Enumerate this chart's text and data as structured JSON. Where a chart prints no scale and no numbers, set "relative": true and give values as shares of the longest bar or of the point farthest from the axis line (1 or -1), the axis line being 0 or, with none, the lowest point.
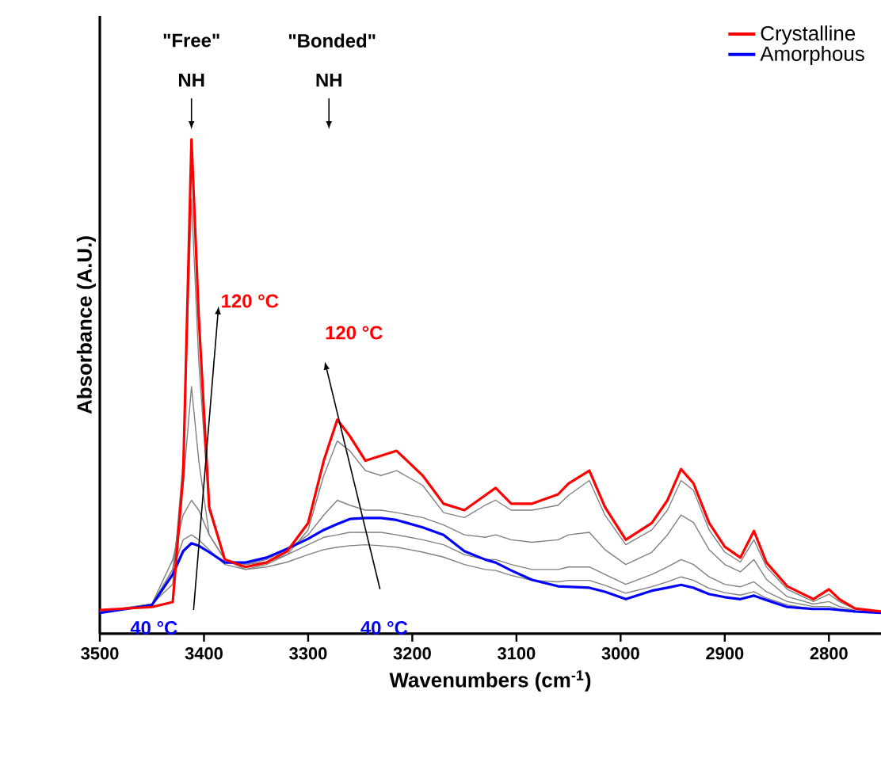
{
  "chart_data": {
    "type": "line",
    "relative": true,
    "xlabel": "Wavenumbers (cm$^{-1}$)",
    "ylabel": "Absorbance (A.U.)",
    "xlim": [
      3500,
      2750
    ],
    "xticks": [
      3500,
      3400,
      3300,
      3200,
      3100,
      3000,
      2900,
      2800
    ],
    "legend": "top right",
    "x": [
      3500,
      3450,
      3430,
      3420,
      3412,
      3405,
      3395,
      3380,
      3360,
      3340,
      3320,
      3300,
      3285,
      3272,
      3260,
      3245,
      3230,
      3215,
      3190,
      3170,
      3150,
      3130,
      3120,
      3105,
      3085,
      3060,
      3050,
      3030,
      3015,
      2995,
      2970,
      2955,
      2942,
      2930,
      2915,
      2900,
      2885,
      2872,
      2860,
      2840,
      2815,
      2800,
      2790,
      2775,
      2750
    ],
    "series": [
      {
        "color": "#808080",
        "values": [
          0.043,
          0.058,
          0.13,
          0.19,
          0.2,
          0.19,
          0.17,
          0.14,
          0.13,
          0.135,
          0.145,
          0.16,
          0.17,
          0.175,
          0.178,
          0.18,
          0.178,
          0.175,
          0.165,
          0.155,
          0.14,
          0.13,
          0.128,
          0.118,
          0.108,
          0.105,
          0.108,
          0.108,
          0.098,
          0.082,
          0.095,
          0.105,
          0.115,
          0.108,
          0.092,
          0.083,
          0.078,
          0.085,
          0.072,
          0.058,
          0.05,
          0.05,
          0.047,
          0.044,
          null
        ]
      },
      {
        "color": "#808080",
        "values": [
          0.044,
          0.06,
          0.15,
          0.24,
          0.27,
          0.25,
          0.2,
          0.15,
          0.14,
          0.145,
          0.16,
          0.18,
          0.195,
          0.2,
          0.205,
          0.205,
          0.205,
          0.2,
          0.19,
          0.18,
          0.16,
          0.15,
          0.15,
          0.14,
          0.13,
          0.13,
          0.135,
          0.135,
          0.12,
          0.1,
          0.12,
          0.135,
          0.15,
          0.14,
          0.115,
          0.1,
          0.095,
          0.105,
          0.085,
          0.065,
          0.055,
          0.055,
          0.05,
          0.046,
          null
        ]
      },
      {
        "color": "#808080",
        "values": [
          0.045,
          0.06,
          0.13,
          0.3,
          0.5,
          0.35,
          0.2,
          0.15,
          0.14,
          0.15,
          0.17,
          0.2,
          0.24,
          0.27,
          0.26,
          0.25,
          0.25,
          0.245,
          0.235,
          0.22,
          0.2,
          0.195,
          0.2,
          0.19,
          0.185,
          0.19,
          0.2,
          0.205,
          0.17,
          0.14,
          0.165,
          0.2,
          0.24,
          0.225,
          0.17,
          0.14,
          0.125,
          0.15,
          0.11,
          0.075,
          0.06,
          0.065,
          0.055,
          0.047,
          null
        ]
      },
      {
        "color": "#808080",
        "values": [
          0.045,
          0.06,
          0.1,
          0.35,
          0.88,
          0.55,
          0.25,
          0.15,
          0.13,
          0.14,
          0.16,
          0.21,
          0.32,
          0.39,
          0.37,
          0.33,
          0.32,
          0.33,
          0.3,
          0.245,
          0.235,
          0.26,
          0.27,
          0.25,
          0.25,
          0.26,
          0.28,
          0.31,
          0.24,
          0.18,
          0.21,
          0.25,
          0.31,
          0.29,
          0.21,
          0.165,
          0.145,
          0.19,
          0.135,
          0.09,
          0.065,
          0.08,
          0.065,
          0.05,
          null
        ]
      },
      {
        "name": "Amorphous",
        "color": "#0000ff",
        "values": [
          0.042,
          0.058,
          0.12,
          0.167,
          0.183,
          0.178,
          0.165,
          0.144,
          0.144,
          0.154,
          0.172,
          0.192,
          0.21,
          0.222,
          0.232,
          0.234,
          0.234,
          0.23,
          0.215,
          0.2,
          0.167,
          0.15,
          0.144,
          0.128,
          0.109,
          0.096,
          0.095,
          0.093,
          0.085,
          0.07,
          0.087,
          0.093,
          0.099,
          0.093,
          0.08,
          0.074,
          0.07,
          0.077,
          0.068,
          0.054,
          0.05,
          0.05,
          0.048,
          0.045,
          0.042
        ]
      },
      {
        "name": "Crystalline",
        "color": "#ff0000",
        "values": [
          0.048,
          0.054,
          0.064,
          0.32,
          1.0,
          0.64,
          0.256,
          0.15,
          0.135,
          0.144,
          0.167,
          0.224,
          0.35,
          0.433,
          0.4,
          0.35,
          0.36,
          0.37,
          0.32,
          0.263,
          0.25,
          0.28,
          0.295,
          0.263,
          0.263,
          0.282,
          0.304,
          0.33,
          0.256,
          0.19,
          0.224,
          0.27,
          0.333,
          0.304,
          0.224,
          0.176,
          0.154,
          0.208,
          0.144,
          0.096,
          0.07,
          0.09,
          0.07,
          0.051,
          0.045
        ]
      }
    ],
    "annotations": [
      "\"Free\"",
      "NH",
      "\"Bonded\"",
      "NH",
      "120 °C",
      "40 °C",
      "120 °C",
      "40 °C"
    ]
  }
}
